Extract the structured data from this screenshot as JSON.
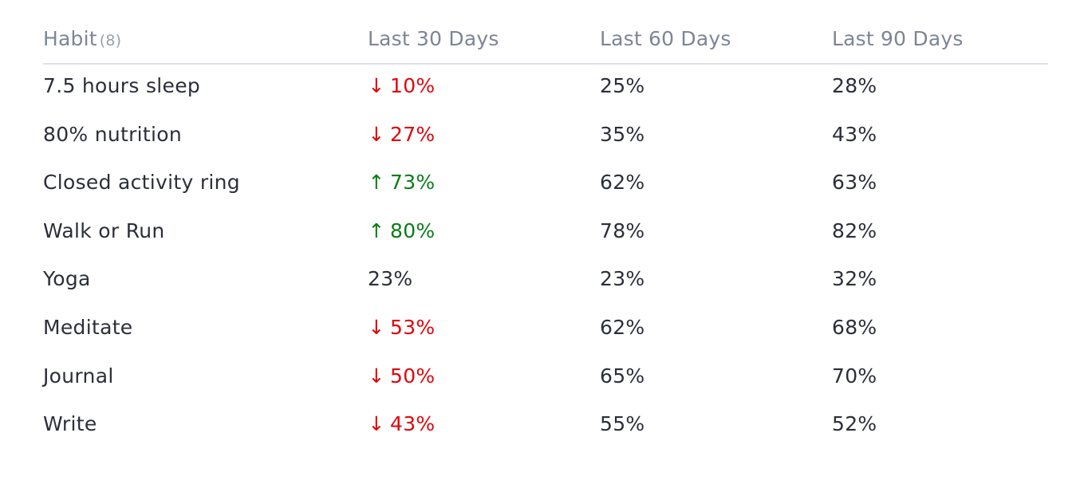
{
  "header": {
    "habit_label": "Habit",
    "habit_count": "(8)",
    "col30": "Last 30 Days",
    "col60": "Last 60 Days",
    "col90": "Last 90 Days"
  },
  "colors": {
    "down": "#e0060b",
    "up": "#0a7d18",
    "text": "#2b2f3a",
    "header_text": "#7d8597",
    "divider": "#dfe1ee"
  },
  "rows": [
    {
      "habit": "7.5 hours sleep",
      "d30": "10%",
      "trend": "down",
      "arrow": "↓",
      "d60": "25%",
      "d90": "28%"
    },
    {
      "habit": "80% nutrition",
      "d30": "27%",
      "trend": "down",
      "arrow": "↓",
      "d60": "35%",
      "d90": "43%"
    },
    {
      "habit": "Closed activity ring",
      "d30": "73%",
      "trend": "up",
      "arrow": "↑",
      "d60": "62%",
      "d90": "63%"
    },
    {
      "habit": "Walk or Run",
      "d30": "80%",
      "trend": "up",
      "arrow": "↑",
      "d60": "78%",
      "d90": "82%"
    },
    {
      "habit": "Yoga",
      "d30": "23%",
      "trend": "none",
      "arrow": "",
      "d60": "23%",
      "d90": "32%"
    },
    {
      "habit": "Meditate",
      "d30": "53%",
      "trend": "down",
      "arrow": "↓",
      "d60": "62%",
      "d90": "68%"
    },
    {
      "habit": "Journal",
      "d30": "50%",
      "trend": "down",
      "arrow": "↓",
      "d60": "65%",
      "d90": "70%"
    },
    {
      "habit": "Write",
      "d30": "43%",
      "trend": "down",
      "arrow": "↓",
      "d60": "55%",
      "d90": "52%"
    }
  ]
}
